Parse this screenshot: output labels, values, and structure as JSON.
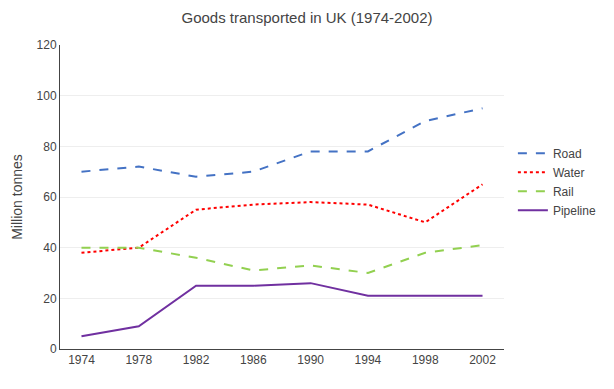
{
  "chart_data": {
    "type": "line",
    "title": "Goods transported in UK (1974-2002)",
    "ylabel": "Million tonnes",
    "x": [
      1974,
      1978,
      1982,
      1986,
      1990,
      1994,
      1998,
      2002
    ],
    "series": [
      {
        "name": "Road",
        "color": "#4472C4",
        "line_style": "dashed",
        "values": [
          70,
          72,
          68,
          70,
          78,
          78,
          90,
          95
        ]
      },
      {
        "name": "Water",
        "color": "#FF0000",
        "line_style": "dotted",
        "values": [
          38,
          40,
          55,
          57,
          58,
          57,
          50,
          65
        ]
      },
      {
        "name": "Rail",
        "color": "#92D050",
        "line_style": "dashed",
        "values": [
          40,
          40,
          36,
          31,
          33,
          30,
          38,
          41
        ]
      },
      {
        "name": "Pipeline",
        "color": "#7030A0",
        "line_style": "solid",
        "values": [
          5,
          9,
          25,
          25,
          26,
          21,
          21,
          21
        ]
      }
    ],
    "xlim": [
      1972.5,
      2003.5
    ],
    "xticks": [
      1974,
      1978,
      1982,
      1986,
      1990,
      1994,
      1998,
      2002
    ],
    "ylim": [
      0,
      120
    ],
    "yticks": [
      0,
      20,
      40,
      60,
      80,
      100,
      120
    ],
    "grid": "y",
    "legend": "right"
  }
}
